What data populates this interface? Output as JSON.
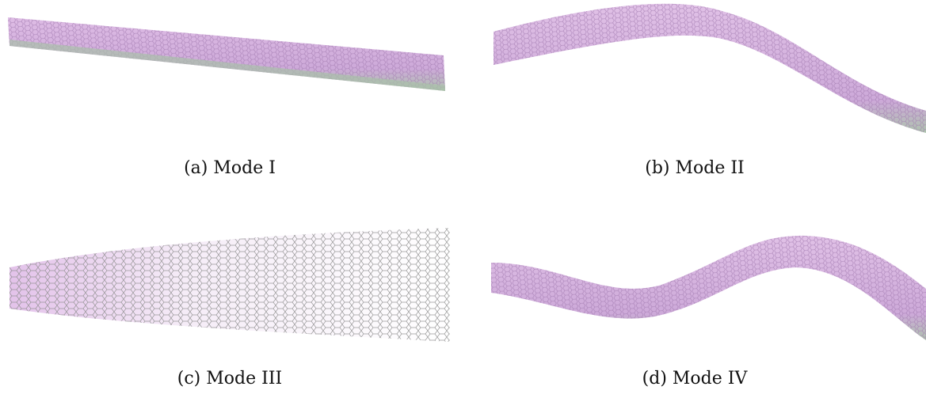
{
  "figure": {
    "panels": [
      {
        "id": "a",
        "caption": "(a) Mode I"
      },
      {
        "id": "b",
        "caption": "(b) Mode II"
      },
      {
        "id": "c",
        "caption": "(c) Mode III"
      },
      {
        "id": "d",
        "caption": "(d) Mode IV"
      }
    ],
    "colors": {
      "lattice_top": "#c98fd6",
      "lattice_bottom": "#9fb89f",
      "lattice_line": "#b7a0bf",
      "background": "#ffffff"
    }
  }
}
